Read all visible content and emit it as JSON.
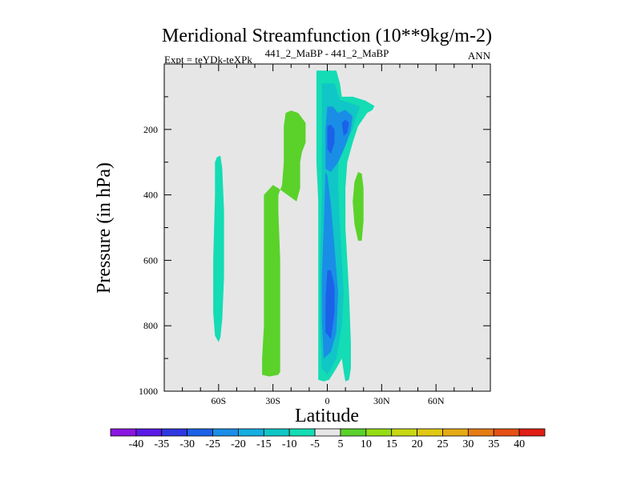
{
  "chart_data": {
    "type": "contour",
    "title": "Meridional Streamfunction (10**9kg/m-2)",
    "subtitle_left": "Expt = teYDk-teXPk",
    "subtitle_center": "441_2_MaBP - 441_2_MaBP",
    "subtitle_right": "ANN",
    "xlabel": "Latitude",
    "ylabel": "Pressure (in hPa)",
    "xlim": [
      -90,
      90
    ],
    "ylim": [
      0,
      1000
    ],
    "y_inverted": true,
    "x_ticks": [
      {
        "value": -60,
        "label": "60S"
      },
      {
        "value": -30,
        "label": "30S"
      },
      {
        "value": 0,
        "label": "0"
      },
      {
        "value": 30,
        "label": "30N"
      },
      {
        "value": 60,
        "label": "60N"
      }
    ],
    "y_ticks": [
      {
        "value": 200,
        "label": "200"
      },
      {
        "value": 400,
        "label": "400"
      },
      {
        "value": 600,
        "label": "600"
      },
      {
        "value": 800,
        "label": "800"
      },
      {
        "value": 1000,
        "label": "1000"
      }
    ],
    "background_color": "#e6e6e6",
    "colorbar": {
      "labels": [
        "-40",
        "-35",
        "-30",
        "-25",
        "-20",
        "-15",
        "-10",
        "-5",
        "5",
        "10",
        "15",
        "20",
        "25",
        "30",
        "35",
        "40"
      ],
      "colors": [
        "#8a16e0",
        "#5a1ae6",
        "#2f37e0",
        "#1a62e8",
        "#1a8ee6",
        "#14aee0",
        "#10c6c6",
        "#14dcb4",
        "#e6e6e6",
        "#5ad22a",
        "#96dc14",
        "#c8d814",
        "#e0c814",
        "#e6aa14",
        "#e67c14",
        "#e65014",
        "#e01e14"
      ]
    },
    "regions": [
      {
        "name": "sh-subtropical-cell",
        "level": "-10",
        "color": "#14dcb4",
        "polygon": [
          [
            -61,
            -285
          ],
          [
            -59,
            -280
          ],
          [
            -58,
            -320
          ],
          [
            -57,
            -450
          ],
          [
            -57,
            -650
          ],
          [
            -58,
            -780
          ],
          [
            -59,
            -835
          ],
          [
            -60,
            -850
          ],
          [
            -62,
            -830
          ],
          [
            -63,
            -760
          ],
          [
            -63,
            -600
          ],
          [
            -62,
            -400
          ],
          [
            -62,
            -300
          ]
        ]
      },
      {
        "name": "sh-ferrel-cell",
        "level": "10",
        "color": "#5ad22a",
        "polygon": [
          [
            -36,
            -950
          ],
          [
            -32,
            -955
          ],
          [
            -27,
            -950
          ],
          [
            -26,
            -940
          ],
          [
            -26,
            -900
          ],
          [
            -26,
            -800
          ],
          [
            -26,
            -600
          ],
          [
            -27,
            -450
          ],
          [
            -27,
            -400
          ],
          [
            -25,
            -370
          ],
          [
            -24,
            -300
          ],
          [
            -24,
            -190
          ],
          [
            -23,
            -150
          ],
          [
            -20,
            -142
          ],
          [
            -16,
            -150
          ],
          [
            -12,
            -180
          ],
          [
            -12,
            -240
          ],
          [
            -14,
            -270
          ],
          [
            -15,
            -300
          ],
          [
            -15,
            -380
          ],
          [
            -17,
            -420
          ],
          [
            -22,
            -400
          ],
          [
            -27,
            -380
          ],
          [
            -30,
            -370
          ],
          [
            -35,
            -400
          ],
          [
            -35,
            -600
          ],
          [
            -35,
            -800
          ],
          [
            -36,
            -900
          ]
        ]
      },
      {
        "name": "tropical-cell-outer",
        "level": "-10",
        "color": "#14dcb4",
        "polygon": [
          [
            -6,
            -20
          ],
          [
            -6,
            -150
          ],
          [
            -6,
            -300
          ],
          [
            -5,
            -420
          ],
          [
            -5,
            -600
          ],
          [
            -5,
            -800
          ],
          [
            -5,
            -900
          ],
          [
            -5,
            -965
          ],
          [
            -2,
            -970
          ],
          [
            1,
            -965
          ],
          [
            5,
            -930
          ],
          [
            8,
            -900
          ],
          [
            9,
            -940
          ],
          [
            10,
            -970
          ],
          [
            12,
            -965
          ],
          [
            13,
            -930
          ],
          [
            13,
            -850
          ],
          [
            12,
            -700
          ],
          [
            11,
            -600
          ],
          [
            10,
            -500
          ],
          [
            10,
            -380
          ],
          [
            11,
            -300
          ],
          [
            14,
            -240
          ],
          [
            17,
            -190
          ],
          [
            22,
            -150
          ],
          [
            25,
            -140
          ],
          [
            26,
            -128
          ],
          [
            21,
            -112
          ],
          [
            14,
            -100
          ],
          [
            8,
            -100
          ],
          [
            7,
            -60
          ],
          [
            5,
            -20
          ]
        ]
      },
      {
        "name": "tropical-cell-inner",
        "level": "-15",
        "color": "#10c6c6",
        "polygon": [
          [
            -3,
            -60
          ],
          [
            -3,
            -250
          ],
          [
            -3,
            -400
          ],
          [
            -4,
            -600
          ],
          [
            -4,
            -800
          ],
          [
            -3,
            -930
          ],
          [
            0,
            -950
          ],
          [
            5,
            -900
          ],
          [
            8,
            -800
          ],
          [
            9,
            -700
          ],
          [
            8,
            -600
          ],
          [
            7,
            -500
          ],
          [
            6,
            -380
          ],
          [
            6,
            -300
          ],
          [
            10,
            -250
          ],
          [
            14,
            -200
          ],
          [
            16,
            -160
          ],
          [
            18,
            -130
          ],
          [
            12,
            -118
          ],
          [
            7,
            -110
          ],
          [
            4,
            -60
          ]
        ]
      },
      {
        "name": "tropical-cell-core-lower",
        "level": "-20",
        "color": "#1a8ee6",
        "polygon": [
          [
            -1,
            -330
          ],
          [
            -2,
            -500
          ],
          [
            -3,
            -650
          ],
          [
            -3,
            -780
          ],
          [
            -2,
            -900
          ],
          [
            2,
            -880
          ],
          [
            5,
            -820
          ],
          [
            6,
            -700
          ],
          [
            4,
            -560
          ],
          [
            2,
            -430
          ],
          [
            0,
            -340
          ]
        ]
      },
      {
        "name": "tropical-cell-core-upper",
        "level": "-20",
        "color": "#1a8ee6",
        "polygon": [
          [
            0,
            -130
          ],
          [
            -1,
            -200
          ],
          [
            -1,
            -320
          ],
          [
            2,
            -330
          ],
          [
            6,
            -300
          ],
          [
            10,
            -250
          ],
          [
            13,
            -200
          ],
          [
            14,
            -160
          ],
          [
            10,
            -140
          ],
          [
            6,
            -150
          ],
          [
            3,
            -130
          ]
        ]
      },
      {
        "name": "tropical-cell-max-lower",
        "level": "-25",
        "color": "#1a62e8",
        "polygon": [
          [
            0,
            -630
          ],
          [
            -1,
            -720
          ],
          [
            -1,
            -820
          ],
          [
            2,
            -840
          ],
          [
            4,
            -760
          ],
          [
            4,
            -680
          ],
          [
            2,
            -630
          ]
        ]
      },
      {
        "name": "tropical-cell-max-upper",
        "level": "-25",
        "color": "#1a62e8",
        "polygon": [
          [
            0,
            -190
          ],
          [
            0,
            -260
          ],
          [
            2,
            -275
          ],
          [
            4,
            -240
          ],
          [
            4,
            -200
          ],
          [
            2,
            -185
          ]
        ]
      },
      {
        "name": "tropical-cell-max-jet",
        "level": "-25",
        "color": "#1a62e8",
        "polygon": [
          [
            8,
            -180
          ],
          [
            9,
            -220
          ],
          [
            11,
            -210
          ],
          [
            12,
            -180
          ],
          [
            10,
            -170
          ]
        ]
      },
      {
        "name": "nh-positive-cell",
        "level": "10",
        "color": "#5ad22a",
        "polygon": [
          [
            17,
            -330
          ],
          [
            15,
            -360
          ],
          [
            14,
            -420
          ],
          [
            15,
            -490
          ],
          [
            17,
            -540
          ],
          [
            19,
            -540
          ],
          [
            20,
            -480
          ],
          [
            20,
            -380
          ],
          [
            19,
            -335
          ]
        ]
      }
    ]
  }
}
